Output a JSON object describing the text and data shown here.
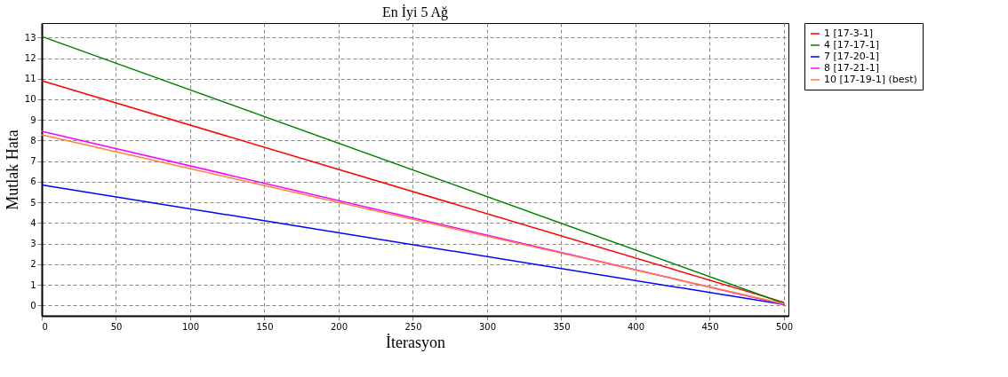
{
  "chart_data": {
    "type": "line",
    "title": "En İyi 5 Ağ",
    "xlabel": "İterasyon",
    "ylabel": "Mutlak Hata",
    "x": [
      0,
      500
    ],
    "series": [
      {
        "name": "1 [17-3-1]",
        "color": "#ff0000",
        "values": [
          10.9,
          0.15
        ]
      },
      {
        "name": "4 [17-17-1]",
        "color": "#008000",
        "values": [
          13.05,
          0.1
        ]
      },
      {
        "name": "7 [17-20-1]",
        "color": "#0000ff",
        "values": [
          5.85,
          0.05
        ]
      },
      {
        "name": "8 [17-21-1]",
        "color": "#ff00ff",
        "values": [
          8.45,
          0.05
        ]
      },
      {
        "name": "10 [17-19-1] (best)",
        "color": "#ff7f3f",
        "values": [
          8.28,
          0.08
        ]
      }
    ],
    "xlim": [
      0,
      503
    ],
    "xticks": [
      0,
      50,
      100,
      150,
      200,
      250,
      300,
      350,
      400,
      450,
      500
    ],
    "ylim": [
      -0.5,
      13.7
    ],
    "yticks": [
      0,
      1,
      2,
      3,
      4,
      5,
      6,
      7,
      8,
      9,
      10,
      11,
      12,
      13
    ],
    "grid": true,
    "legend": "top right",
    "marker": "none",
    "line_style": "solid"
  }
}
